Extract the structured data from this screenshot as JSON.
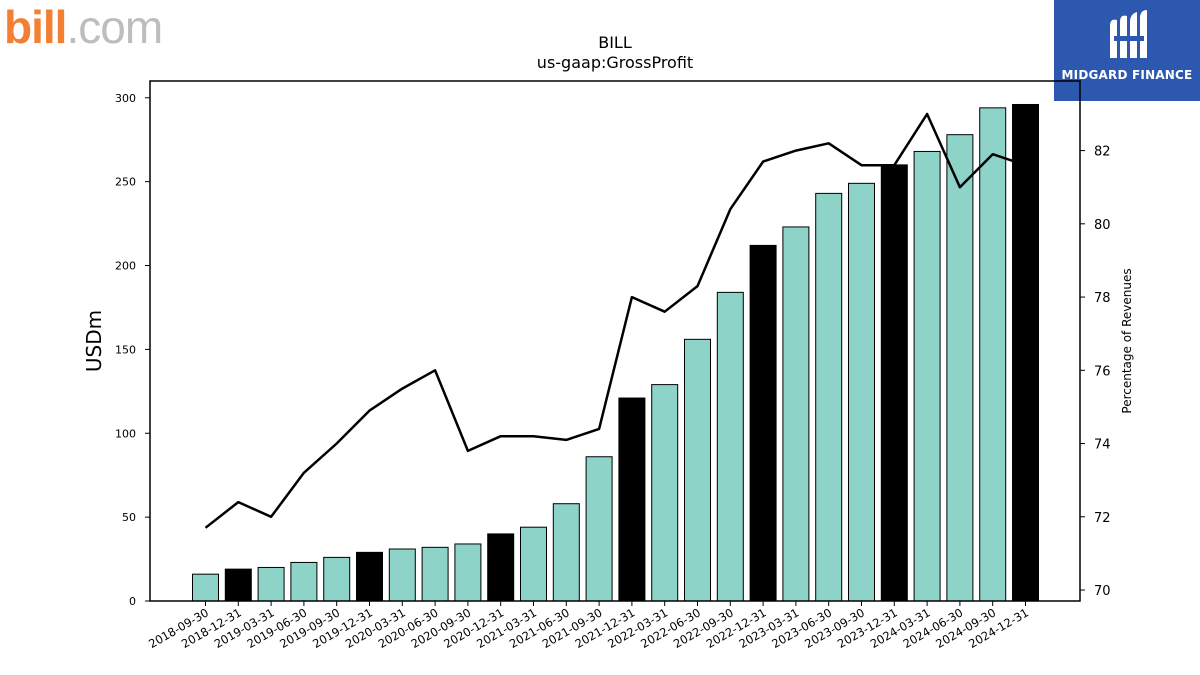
{
  "logos": {
    "bill_main": "bill",
    "bill_suffix": ".com",
    "midgard": "MIDGARD FINANCE"
  },
  "colors": {
    "bar_regular": "#8dd3c7",
    "bar_highlight": "#000000",
    "line": "#000000",
    "midgard_bg": "#2c58b0"
  },
  "chart_data": {
    "type": "bar",
    "title": "BILL",
    "subtitle": "us-gaap:GrossProfit",
    "ylabel": "USDm",
    "y2label": "Percentage of Revenues",
    "ylim": [
      0,
      310
    ],
    "y2lim": [
      69.7,
      83.9
    ],
    "yticks": [
      0,
      50,
      100,
      150,
      200,
      250,
      300
    ],
    "y2ticks": [
      70,
      72,
      74,
      76,
      78,
      80,
      82
    ],
    "categories": [
      "2018-09-30",
      "2018-12-31",
      "2019-03-31",
      "2019-06-30",
      "2019-09-30",
      "2019-12-31",
      "2020-03-31",
      "2020-06-30",
      "2020-09-30",
      "2020-12-31",
      "2021-03-31",
      "2021-06-30",
      "2021-09-30",
      "2021-12-31",
      "2022-03-31",
      "2022-06-30",
      "2022-09-30",
      "2022-12-31",
      "2023-03-31",
      "2023-06-30",
      "2023-09-30",
      "2023-12-31",
      "2024-03-31",
      "2024-06-30",
      "2024-09-30",
      "2024-12-31"
    ],
    "highlight": [
      false,
      true,
      false,
      false,
      false,
      true,
      false,
      false,
      false,
      true,
      false,
      false,
      false,
      true,
      false,
      false,
      false,
      true,
      false,
      false,
      false,
      true,
      false,
      false,
      false,
      true
    ],
    "series": [
      {
        "type": "bar",
        "values": [
          16,
          19,
          20,
          23,
          26,
          29,
          31,
          32,
          34,
          40,
          44,
          58,
          86,
          121,
          129,
          156,
          184,
          212,
          223,
          243,
          249,
          260,
          268,
          278,
          294,
          296
        ]
      },
      {
        "type": "line",
        "axis": "right",
        "values": [
          71.7,
          72.4,
          72.0,
          73.2,
          74.0,
          74.9,
          75.5,
          76.0,
          73.8,
          74.2,
          74.2,
          74.1,
          74.4,
          78.0,
          77.6,
          78.3,
          80.4,
          81.7,
          82.0,
          82.2,
          81.6,
          81.6,
          83.0,
          81.0,
          81.9,
          81.6
        ]
      }
    ]
  }
}
